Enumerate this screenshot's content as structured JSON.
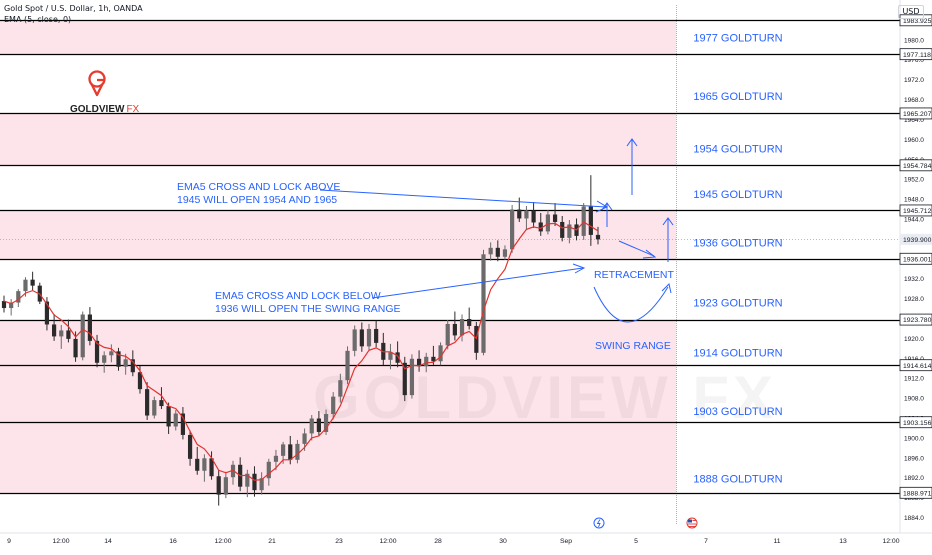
{
  "header": {
    "symbol_line": "Gold Spot / U.S. Dollar, 1h, OANDA",
    "indicator_line": "EMA (5, close, 0)",
    "currency": "USD"
  },
  "logo": {
    "brand": "GOLDVIEW",
    "suffix": "FX",
    "watermark": "GOLDVIEW FX"
  },
  "colors": {
    "zone_fill": "#fde3ea",
    "level_line": "#000000",
    "annotation_blue": "#2962ff",
    "candle_up": "#6b6b6b",
    "candle_down": "#2b2b2b",
    "ema_red": "#e0342f",
    "logo_red": "#e63b2e",
    "last_price_bg": "#e9ecf2"
  },
  "chart_data": {
    "type": "candlestick",
    "ylim": [
      1882.5,
      1987.0
    ],
    "y_ticks": [
      1884.0,
      1888.0,
      1892.0,
      1896.0,
      1900.0,
      1904.0,
      1908.0,
      1912.0,
      1916.0,
      1920.0,
      1924.0,
      1928.0,
      1932.0,
      1936.0,
      1940.0,
      1944.0,
      1948.0,
      1952.0,
      1956.0,
      1960.0,
      1964.0,
      1968.0,
      1972.0,
      1976.0,
      1980.0
    ],
    "x_tick_labels": [
      "9",
      "12:00",
      "14",
      "16",
      "12:00",
      "21",
      "23",
      "12:00",
      "28",
      "30",
      "Sep",
      "5",
      "7",
      "11",
      "13",
      "12:00"
    ],
    "price_labels": [
      {
        "value": 1983.925,
        "text": "1983.925",
        "style": "level"
      },
      {
        "value": 1977.118,
        "text": "1977.118",
        "style": "level"
      },
      {
        "value": 1965.207,
        "text": "1965.207",
        "style": "level"
      },
      {
        "value": 1954.784,
        "text": "1954.784",
        "style": "level"
      },
      {
        "value": 1945.712,
        "text": "1945.712",
        "style": "level"
      },
      {
        "value": 1939.9,
        "text": "1939.900",
        "style": "last"
      },
      {
        "value": 1936.001,
        "text": "1936.001",
        "style": "level"
      },
      {
        "value": 1923.78,
        "text": "1923.780",
        "style": "level"
      },
      {
        "value": 1914.614,
        "text": "1914.614",
        "style": "level"
      },
      {
        "value": 1903.156,
        "text": "1903.156",
        "style": "level"
      },
      {
        "value": 1888.971,
        "text": "1888.971",
        "style": "level"
      }
    ],
    "levels": [
      1983.925,
      1977.118,
      1965.207,
      1954.784,
      1945.712,
      1936.001,
      1923.78,
      1914.614,
      1903.156,
      1888.971
    ],
    "last_price": 1939.9,
    "zones": [
      {
        "from": 1977.118,
        "to": 1983.925
      },
      {
        "from": 1954.784,
        "to": 1965.207
      },
      {
        "from": 1936.001,
        "to": 1945.712
      },
      {
        "from": 1888.971,
        "to": 1923.78
      }
    ],
    "goldturn_labels": [
      {
        "text": "1977 GOLDTURN",
        "value": 1980.5
      },
      {
        "text": "1965 GOLDTURN",
        "value": 1968.7
      },
      {
        "text": "1954 GOLDTURN",
        "value": 1958.2
      },
      {
        "text": "1945 GOLDTURN",
        "value": 1949.0
      },
      {
        "text": "1936 GOLDTURN",
        "value": 1939.3
      },
      {
        "text": "1923 GOLDTURN",
        "value": 1927.2
      },
      {
        "text": "1914 GOLDTURN",
        "value": 1917.2
      },
      {
        "text": "1903 GOLDTURN",
        "value": 1905.4
      },
      {
        "text": "1888 GOLDTURN",
        "value": 1891.8
      }
    ],
    "annotations": [
      {
        "lines": [
          "EMA5 CROSS AND LOCK ABOVE",
          "1945 WILL OPEN 1954 AND 1965"
        ]
      },
      {
        "lines": [
          "EMA5 CROSS AND LOCK BELOW",
          "1936 WILL OPEN THE SWING RANGE"
        ]
      },
      {
        "lines": [
          "RETRACEMENT"
        ]
      },
      {
        "lines": [
          "SWING RANGE"
        ]
      }
    ],
    "candles": [
      [
        1927.5,
        1928.6,
        1925.2,
        1926.1
      ],
      [
        1926.1,
        1927.9,
        1924.6,
        1927.2
      ],
      [
        1927.2,
        1929.9,
        1926.3,
        1929.5
      ],
      [
        1929.5,
        1932.3,
        1928.4,
        1931.8
      ],
      [
        1931.8,
        1933.4,
        1929.7,
        1930.6
      ],
      [
        1930.6,
        1931.2,
        1926.9,
        1927.4
      ],
      [
        1927.4,
        1928.3,
        1921.6,
        1922.8
      ],
      [
        1922.8,
        1924.9,
        1919.5,
        1920.4
      ],
      [
        1920.4,
        1922.7,
        1917.9,
        1921.6
      ],
      [
        1921.6,
        1923.8,
        1919.2,
        1919.9
      ],
      [
        1919.9,
        1921.4,
        1915.3,
        1916.2
      ],
      [
        1916.2,
        1925.4,
        1915.6,
        1924.8
      ],
      [
        1924.8,
        1926.3,
        1918.6,
        1919.5
      ],
      [
        1919.5,
        1920.7,
        1914.2,
        1915.1
      ],
      [
        1915.1,
        1917.4,
        1913.1,
        1916.6
      ],
      [
        1916.6,
        1918.8,
        1915.2,
        1917.4
      ],
      [
        1917.4,
        1918.1,
        1913.5,
        1914.3
      ],
      [
        1914.3,
        1916.9,
        1912.7,
        1915.8
      ],
      [
        1915.8,
        1917.6,
        1912.4,
        1913.2
      ],
      [
        1913.2,
        1914.5,
        1908.9,
        1909.8
      ],
      [
        1909.8,
        1911.2,
        1903.6,
        1904.5
      ],
      [
        1904.5,
        1908.3,
        1903.9,
        1907.6
      ],
      [
        1907.6,
        1910.2,
        1905.8,
        1906.4
      ],
      [
        1906.4,
        1907.1,
        1900.8,
        1902.3
      ],
      [
        1902.3,
        1905.6,
        1901.5,
        1904.9
      ],
      [
        1904.9,
        1906.2,
        1899.7,
        1900.6
      ],
      [
        1900.6,
        1901.5,
        1894.4,
        1895.8
      ],
      [
        1895.8,
        1898.2,
        1892.6,
        1893.4
      ],
      [
        1893.4,
        1896.7,
        1891.2,
        1895.9
      ],
      [
        1895.9,
        1897.3,
        1891.6,
        1892.3
      ],
      [
        1892.3,
        1893.5,
        1886.4,
        1888.6
      ],
      [
        1888.6,
        1893.2,
        1887.9,
        1892.1
      ],
      [
        1892.1,
        1895.4,
        1890.6,
        1894.6
      ],
      [
        1894.6,
        1896.1,
        1889.3,
        1890.2
      ],
      [
        1890.2,
        1893.6,
        1888.1,
        1892.8
      ],
      [
        1892.8,
        1894.3,
        1888.2,
        1889.5
      ],
      [
        1889.5,
        1893.1,
        1888.6,
        1891.9
      ],
      [
        1891.9,
        1895.8,
        1890.4,
        1895.2
      ],
      [
        1895.2,
        1897.6,
        1893.5,
        1896.4
      ],
      [
        1896.4,
        1899.2,
        1894.8,
        1898.7
      ],
      [
        1898.7,
        1900.4,
        1894.7,
        1895.6
      ],
      [
        1895.6,
        1899.6,
        1894.9,
        1898.8
      ],
      [
        1898.8,
        1901.9,
        1897.4,
        1900.9
      ],
      [
        1900.9,
        1904.6,
        1899.5,
        1903.9
      ],
      [
        1903.9,
        1905.4,
        1900.3,
        1901.2
      ],
      [
        1901.2,
        1905.7,
        1900.6,
        1904.8
      ],
      [
        1904.8,
        1909.2,
        1903.7,
        1908.3
      ],
      [
        1908.3,
        1912.9,
        1907.1,
        1911.6
      ],
      [
        1911.6,
        1918.4,
        1910.8,
        1917.5
      ],
      [
        1917.5,
        1922.6,
        1916.4,
        1921.8
      ],
      [
        1921.8,
        1923.2,
        1917.3,
        1918.4
      ],
      [
        1918.4,
        1922.9,
        1917.5,
        1921.9
      ],
      [
        1921.9,
        1923.6,
        1918.2,
        1919.1
      ],
      [
        1919.1,
        1921.1,
        1914.6,
        1915.7
      ],
      [
        1915.7,
        1918.9,
        1913.8,
        1917.2
      ],
      [
        1917.2,
        1919.4,
        1914.2,
        1915.1
      ],
      [
        1915.1,
        1916.3,
        1907.4,
        1908.6
      ],
      [
        1908.6,
        1916.8,
        1907.9,
        1915.9
      ],
      [
        1915.9,
        1917.6,
        1913.3,
        1914.4
      ],
      [
        1914.4,
        1917.1,
        1913.2,
        1916.3
      ],
      [
        1916.3,
        1918.5,
        1914.7,
        1915.4
      ],
      [
        1915.4,
        1919.2,
        1914.6,
        1918.6
      ],
      [
        1918.6,
        1923.7,
        1917.8,
        1922.9
      ],
      [
        1922.9,
        1925.4,
        1919.6,
        1920.6
      ],
      [
        1920.6,
        1924.8,
        1919.4,
        1923.9
      ],
      [
        1923.9,
        1926.2,
        1921.8,
        1922.5
      ],
      [
        1922.5,
        1923.3,
        1915.7,
        1917.1
      ],
      [
        1917.1,
        1937.8,
        1916.6,
        1936.9
      ],
      [
        1936.9,
        1939.3,
        1935.6,
        1938.2
      ],
      [
        1938.2,
        1939.7,
        1935.5,
        1936.4
      ],
      [
        1936.4,
        1938.7,
        1935.8,
        1937.9
      ],
      [
        1937.9,
        1946.8,
        1937.2,
        1945.9
      ],
      [
        1945.9,
        1948.3,
        1943.4,
        1944.1
      ],
      [
        1944.1,
        1946.6,
        1941.8,
        1945.7
      ],
      [
        1945.7,
        1947.4,
        1942.2,
        1943.3
      ],
      [
        1943.3,
        1945.2,
        1940.6,
        1941.5
      ],
      [
        1941.5,
        1945.8,
        1940.9,
        1944.9
      ],
      [
        1944.9,
        1947.2,
        1942.6,
        1943.4
      ],
      [
        1943.4,
        1944.6,
        1939.5,
        1940.2
      ],
      [
        1940.2,
        1943.8,
        1939.1,
        1942.9
      ],
      [
        1942.9,
        1944.1,
        1939.7,
        1940.6
      ],
      [
        1940.6,
        1947.2,
        1939.8,
        1946.5
      ],
      [
        1946.5,
        1952.8,
        1938.6,
        1940.8
      ],
      [
        1940.8,
        1942.4,
        1938.9,
        1939.9
      ]
    ],
    "ema": [
      1927.5,
      1927.0,
      1927.8,
      1929.1,
      1929.6,
      1928.9,
      1926.9,
      1924.7,
      1923.7,
      1922.4,
      1920.3,
      1921.8,
      1921.0,
      1919.0,
      1918.2,
      1917.9,
      1916.7,
      1916.4,
      1915.3,
      1913.5,
      1910.5,
      1909.5,
      1908.5,
      1906.4,
      1905.9,
      1904.1,
      1901.3,
      1898.7,
      1897.8,
      1896.0,
      1893.5,
      1893.0,
      1893.5,
      1892.4,
      1892.5,
      1891.5,
      1891.6,
      1892.8,
      1894.0,
      1895.6,
      1895.6,
      1896.7,
      1898.1,
      1900.0,
      1900.4,
      1901.9,
      1904.0,
      1906.5,
      1910.2,
      1914.0,
      1915.5,
      1917.6,
      1918.1,
      1917.3,
      1917.3,
      1916.5,
      1913.9,
      1914.6,
      1914.5,
      1915.1,
      1915.2,
      1916.3,
      1918.5,
      1919.2,
      1920.8,
      1921.4,
      1920.0,
      1925.6,
      1929.8,
      1932.0,
      1933.9,
      1937.9,
      1940.0,
      1941.9,
      1942.4,
      1942.1,
      1943.0,
      1943.1,
      1942.2,
      1942.4,
      1941.8,
      1943.4,
      1942.5,
      1941.6
    ]
  }
}
